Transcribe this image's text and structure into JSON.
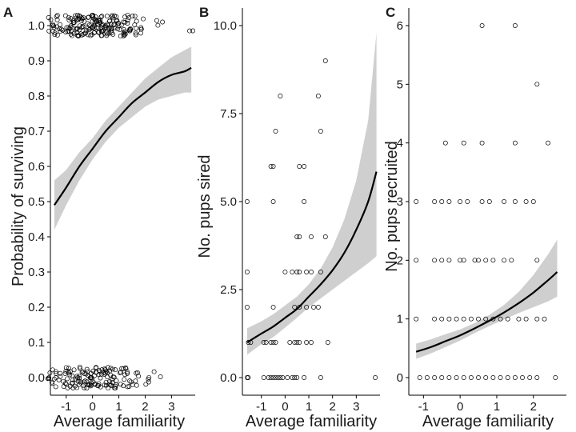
{
  "chart_data": [
    {
      "type": "scatter",
      "panel_label": "A",
      "xlabel": "Average familiarity",
      "ylabel": "Probability of surviving",
      "xlim": [
        -1.6,
        3.9
      ],
      "ylim": [
        -0.05,
        1.05
      ],
      "x_ticks": [
        -1,
        0,
        1,
        2,
        3
      ],
      "x_tick_labels": [
        "-1",
        "0",
        "1",
        "2",
        "3"
      ],
      "y_ticks": [
        0.0,
        0.1,
        0.2,
        0.3,
        0.4,
        0.5,
        0.6,
        0.7,
        0.8,
        0.9,
        1.0
      ],
      "y_tick_labels": [
        "0.0",
        "0.1",
        "0.2",
        "0.3",
        "0.4",
        "0.5",
        "0.6",
        "0.7",
        "0.8",
        "0.9",
        "1.0"
      ],
      "fit": {
        "x": [
          -1.45,
          -1.0,
          -0.5,
          0.0,
          0.5,
          1.0,
          1.5,
          2.0,
          2.5,
          3.0,
          3.5,
          3.75
        ],
        "y": [
          0.49,
          0.54,
          0.6,
          0.65,
          0.7,
          0.74,
          0.78,
          0.81,
          0.84,
          0.86,
          0.87,
          0.88
        ]
      },
      "ci_lower": [
        0.42,
        0.49,
        0.56,
        0.62,
        0.67,
        0.71,
        0.74,
        0.77,
        0.79,
        0.8,
        0.81,
        0.81
      ],
      "ci_upper": [
        0.56,
        0.59,
        0.64,
        0.68,
        0.73,
        0.77,
        0.81,
        0.85,
        0.88,
        0.91,
        0.93,
        0.94
      ],
      "points": [
        {
          "x": -1.5,
          "y": 1,
          "n": 10
        },
        {
          "x": -1.2,
          "y": 1,
          "n": 12
        },
        {
          "x": -0.8,
          "y": 1,
          "n": 22
        },
        {
          "x": -0.4,
          "y": 1,
          "n": 28
        },
        {
          "x": 0.0,
          "y": 1,
          "n": 30
        },
        {
          "x": 0.4,
          "y": 1,
          "n": 28
        },
        {
          "x": 0.8,
          "y": 1,
          "n": 24
        },
        {
          "x": 1.2,
          "y": 1,
          "n": 18
        },
        {
          "x": 1.6,
          "y": 1,
          "n": 12
        },
        {
          "x": 2.0,
          "y": 1,
          "n": 5
        },
        {
          "x": 2.5,
          "y": 1,
          "n": 3
        },
        {
          "x": 3.7,
          "y": 1,
          "n": 2
        },
        {
          "x": -1.5,
          "y": 0,
          "n": 10
        },
        {
          "x": -1.2,
          "y": 0,
          "n": 10
        },
        {
          "x": -0.8,
          "y": 0,
          "n": 18
        },
        {
          "x": -0.4,
          "y": 0,
          "n": 22
        },
        {
          "x": 0.0,
          "y": 0,
          "n": 24
        },
        {
          "x": 0.4,
          "y": 0,
          "n": 22
        },
        {
          "x": 0.8,
          "y": 0,
          "n": 18
        },
        {
          "x": 1.2,
          "y": 0,
          "n": 14
        },
        {
          "x": 1.6,
          "y": 0,
          "n": 8
        },
        {
          "x": 2.0,
          "y": 0,
          "n": 4
        },
        {
          "x": 2.5,
          "y": 0,
          "n": 2
        }
      ]
    },
    {
      "type": "scatter",
      "panel_label": "B",
      "xlabel": "Average familiarity",
      "ylabel": "No. pups sired",
      "xlim": [
        -1.8,
        4.0
      ],
      "ylim": [
        -0.5,
        10.5
      ],
      "x_ticks": [
        -1,
        0,
        1,
        2,
        3
      ],
      "x_tick_labels": [
        "-1",
        "0",
        "1",
        "2",
        "3"
      ],
      "y_ticks": [
        0.0,
        2.5,
        5.0,
        7.5,
        10.0
      ],
      "y_tick_labels": [
        "0.0",
        "2.5",
        "5.0",
        "7.5",
        "10.0"
      ],
      "fit": {
        "x": [
          -1.6,
          -1.0,
          -0.5,
          0.0,
          0.5,
          1.0,
          1.5,
          2.0,
          2.5,
          3.0,
          3.5,
          3.85
        ],
        "y": [
          1.0,
          1.25,
          1.45,
          1.7,
          1.95,
          2.3,
          2.65,
          3.05,
          3.55,
          4.2,
          5.0,
          5.85
        ]
      },
      "ci_lower": [
        0.65,
        0.95,
        1.15,
        1.42,
        1.7,
        2.0,
        2.25,
        2.5,
        2.75,
        3.0,
        3.25,
        3.45
      ],
      "ci_upper": [
        1.4,
        1.6,
        1.8,
        2.05,
        2.3,
        2.65,
        3.1,
        3.7,
        4.5,
        5.6,
        7.3,
        9.8
      ],
      "points": [
        {
          "x": -1.6,
          "y": 0
        },
        {
          "x": -1.55,
          "y": 0
        },
        {
          "x": -0.9,
          "y": 0
        },
        {
          "x": -0.7,
          "y": 0
        },
        {
          "x": -0.6,
          "y": 0
        },
        {
          "x": -0.5,
          "y": 0
        },
        {
          "x": -0.4,
          "y": 0
        },
        {
          "x": -0.3,
          "y": 0
        },
        {
          "x": -0.2,
          "y": 0
        },
        {
          "x": -0.1,
          "y": 0
        },
        {
          "x": 0.1,
          "y": 0
        },
        {
          "x": 0.3,
          "y": 0
        },
        {
          "x": 0.4,
          "y": 0
        },
        {
          "x": 0.5,
          "y": 0
        },
        {
          "x": 0.8,
          "y": 0
        },
        {
          "x": 1.5,
          "y": 0
        },
        {
          "x": 3.8,
          "y": 0
        },
        {
          "x": -1.55,
          "y": 1
        },
        {
          "x": -1.45,
          "y": 1
        },
        {
          "x": -0.9,
          "y": 1
        },
        {
          "x": -0.8,
          "y": 1
        },
        {
          "x": -0.6,
          "y": 1
        },
        {
          "x": -0.5,
          "y": 1
        },
        {
          "x": -0.4,
          "y": 1
        },
        {
          "x": 0.2,
          "y": 1
        },
        {
          "x": 0.4,
          "y": 1
        },
        {
          "x": 0.5,
          "y": 1
        },
        {
          "x": 0.6,
          "y": 1
        },
        {
          "x": 0.9,
          "y": 1
        },
        {
          "x": 1.1,
          "y": 1
        },
        {
          "x": 1.8,
          "y": 1
        },
        {
          "x": -1.6,
          "y": 2
        },
        {
          "x": -0.5,
          "y": 2
        },
        {
          "x": 0.4,
          "y": 2
        },
        {
          "x": 0.6,
          "y": 2
        },
        {
          "x": 0.9,
          "y": 2
        },
        {
          "x": 1.2,
          "y": 2
        },
        {
          "x": 1.4,
          "y": 2
        },
        {
          "x": -1.6,
          "y": 3
        },
        {
          "x": 0.0,
          "y": 3
        },
        {
          "x": 0.3,
          "y": 3
        },
        {
          "x": 0.5,
          "y": 3
        },
        {
          "x": 0.6,
          "y": 3
        },
        {
          "x": 0.9,
          "y": 3
        },
        {
          "x": 1.1,
          "y": 3
        },
        {
          "x": 1.5,
          "y": 3
        },
        {
          "x": 0.5,
          "y": 4
        },
        {
          "x": 0.6,
          "y": 4
        },
        {
          "x": 1.1,
          "y": 4
        },
        {
          "x": 1.7,
          "y": 4
        },
        {
          "x": -1.6,
          "y": 5
        },
        {
          "x": -0.5,
          "y": 5
        },
        {
          "x": 0.8,
          "y": 5
        },
        {
          "x": -0.6,
          "y": 6
        },
        {
          "x": -0.5,
          "y": 6
        },
        {
          "x": 0.6,
          "y": 6
        },
        {
          "x": 0.8,
          "y": 6
        },
        {
          "x": -0.4,
          "y": 7
        },
        {
          "x": 1.5,
          "y": 7
        },
        {
          "x": -0.2,
          "y": 8
        },
        {
          "x": 1.4,
          "y": 8
        },
        {
          "x": 1.7,
          "y": 9
        }
      ]
    },
    {
      "type": "scatter",
      "panel_label": "C",
      "xlabel": "Average familiarity",
      "ylabel": "No. pups recruited",
      "xlim": [
        -1.4,
        2.9
      ],
      "ylim": [
        -0.3,
        6.3
      ],
      "x_ticks": [
        -1,
        0,
        1,
        2
      ],
      "x_tick_labels": [
        "-1",
        "0",
        "1",
        "2"
      ],
      "y_ticks": [
        0,
        1,
        2,
        3,
        4,
        5,
        6
      ],
      "y_tick_labels": [
        "0",
        "1",
        "2",
        "3",
        "4",
        "5",
        "6"
      ],
      "fit": {
        "x": [
          -1.2,
          -0.8,
          -0.4,
          0.0,
          0.4,
          0.8,
          1.2,
          1.6,
          2.0,
          2.4,
          2.65
        ],
        "y": [
          0.44,
          0.52,
          0.62,
          0.72,
          0.84,
          0.97,
          1.11,
          1.27,
          1.45,
          1.66,
          1.8
        ]
      },
      "ci_lower": [
        0.32,
        0.41,
        0.52,
        0.63,
        0.76,
        0.88,
        0.99,
        1.1,
        1.2,
        1.3,
        1.38
      ],
      "ci_upper": [
        0.58,
        0.65,
        0.74,
        0.82,
        0.93,
        1.07,
        1.24,
        1.46,
        1.75,
        2.1,
        2.35
      ],
      "points": [
        {
          "x": -1.1,
          "y": 0
        },
        {
          "x": -0.9,
          "y": 0
        },
        {
          "x": -0.7,
          "y": 0
        },
        {
          "x": -0.5,
          "y": 0
        },
        {
          "x": -0.3,
          "y": 0
        },
        {
          "x": -0.1,
          "y": 0
        },
        {
          "x": 0.1,
          "y": 0
        },
        {
          "x": 0.3,
          "y": 0
        },
        {
          "x": 0.5,
          "y": 0
        },
        {
          "x": 0.7,
          "y": 0
        },
        {
          "x": 0.9,
          "y": 0
        },
        {
          "x": 1.1,
          "y": 0
        },
        {
          "x": 1.3,
          "y": 0
        },
        {
          "x": 1.5,
          "y": 0
        },
        {
          "x": 1.7,
          "y": 0
        },
        {
          "x": 1.9,
          "y": 0
        },
        {
          "x": 2.1,
          "y": 0
        },
        {
          "x": 2.6,
          "y": 0
        },
        {
          "x": -1.2,
          "y": 1
        },
        {
          "x": -0.7,
          "y": 1
        },
        {
          "x": -0.5,
          "y": 1
        },
        {
          "x": -0.3,
          "y": 1
        },
        {
          "x": -0.1,
          "y": 1
        },
        {
          "x": 0.1,
          "y": 1
        },
        {
          "x": 0.3,
          "y": 1
        },
        {
          "x": 0.5,
          "y": 1
        },
        {
          "x": 0.7,
          "y": 1
        },
        {
          "x": 0.9,
          "y": 1
        },
        {
          "x": 1.1,
          "y": 1
        },
        {
          "x": 1.3,
          "y": 1
        },
        {
          "x": 1.6,
          "y": 1
        },
        {
          "x": 1.8,
          "y": 1
        },
        {
          "x": 2.1,
          "y": 1
        },
        {
          "x": 2.3,
          "y": 1
        },
        {
          "x": -1.2,
          "y": 2
        },
        {
          "x": -0.7,
          "y": 2
        },
        {
          "x": -0.5,
          "y": 2
        },
        {
          "x": -0.3,
          "y": 2
        },
        {
          "x": 0.0,
          "y": 2
        },
        {
          "x": 0.1,
          "y": 2
        },
        {
          "x": 0.4,
          "y": 2
        },
        {
          "x": 0.5,
          "y": 2
        },
        {
          "x": 0.7,
          "y": 2
        },
        {
          "x": 0.9,
          "y": 2
        },
        {
          "x": 1.2,
          "y": 2
        },
        {
          "x": 1.4,
          "y": 2
        },
        {
          "x": 2.1,
          "y": 2
        },
        {
          "x": -1.2,
          "y": 3
        },
        {
          "x": -0.7,
          "y": 3
        },
        {
          "x": -0.5,
          "y": 3
        },
        {
          "x": -0.3,
          "y": 3
        },
        {
          "x": 0.0,
          "y": 3
        },
        {
          "x": 0.2,
          "y": 3
        },
        {
          "x": 0.6,
          "y": 3
        },
        {
          "x": 0.8,
          "y": 3
        },
        {
          "x": 1.2,
          "y": 3
        },
        {
          "x": 1.5,
          "y": 3
        },
        {
          "x": 1.8,
          "y": 3
        },
        {
          "x": 2.0,
          "y": 3
        },
        {
          "x": -0.4,
          "y": 4
        },
        {
          "x": 0.1,
          "y": 4
        },
        {
          "x": 0.6,
          "y": 4
        },
        {
          "x": 1.5,
          "y": 4
        },
        {
          "x": 2.4,
          "y": 4
        },
        {
          "x": 2.1,
          "y": 5
        },
        {
          "x": 0.6,
          "y": 6
        },
        {
          "x": 1.5,
          "y": 6
        }
      ]
    }
  ]
}
